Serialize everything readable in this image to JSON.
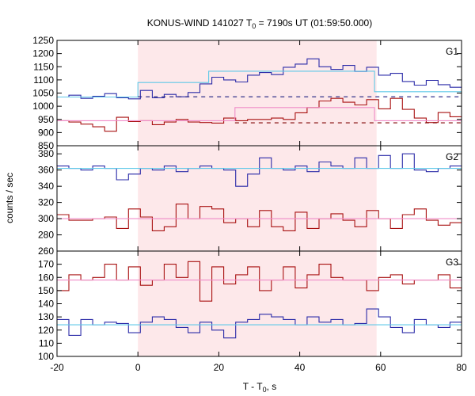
{
  "chart_data": {
    "type": "line",
    "title_main": "KONUS-WIND 141027 T",
    "title_sub": "0",
    "title_rest": " = 7190s UT (01:59:50.000)",
    "xlabel_main": "T - T",
    "xlabel_sub": "0",
    "xlabel_rest": ", s",
    "ylabel": "counts / sec",
    "xlim": [
      -20,
      80
    ],
    "x_ticks": [
      -20,
      0,
      20,
      40,
      60,
      80
    ],
    "x_tick_labels": [
      "-20",
      "0",
      "20",
      "40",
      "60",
      "80"
    ],
    "shaded_interval": [
      0,
      59
    ],
    "shade_color": "#fde8ea",
    "colors": {
      "blue": "#2b2ba8",
      "red": "#a81010",
      "cyan": "#5ec8e8",
      "pink": "#f08cc8",
      "dark_blue": "#1c1c80",
      "dark_red": "#800000"
    },
    "panels": [
      {
        "label": "G1",
        "ylim": [
          850,
          1250
        ],
        "y_ticks": [
          850,
          900,
          950,
          1000,
          1050,
          1100,
          1150,
          1200,
          1250
        ],
        "y_tick_labels": [
          "850",
          "900",
          "950",
          "1000",
          "1050",
          "1100",
          "1150",
          "1200",
          "1250"
        ],
        "bin_width": 2.944,
        "x_start": -20,
        "series": [
          {
            "color": "blue",
            "values": [
              1035,
              1042,
              1030,
              1038,
              1048,
              1032,
              1028,
              1060,
              1032,
              1045,
              1036,
              1052,
              1085,
              1110,
              1100,
              1092,
              1118,
              1128,
              1120,
              1148,
              1160,
              1180,
              1150,
              1140,
              1155,
              1132,
              1148,
              1118,
              1125,
              1094,
              1080,
              1098,
              1082,
              1072,
              1060,
              1070
            ]
          },
          {
            "color": "red",
            "values": [
              945,
              940,
              932,
              922,
              905,
              958,
              942,
              945,
              930,
              940,
              950,
              940,
              938,
              936,
              955,
              945,
              950,
              950,
              955,
              950,
              975,
              995,
              1020,
              1030,
              1015,
              1005,
              1025,
              990,
              1030,
              988,
              955,
              938,
              976,
              960,
              942,
              940,
              935,
              925
            ]
          }
        ],
        "levels": [
          {
            "color": "cyan",
            "segments": [
              [
                -20,
                0,
                1035
              ],
              [
                0,
                17.5,
                1090
              ],
              [
                17.5,
                58.5,
                1133
              ],
              [
                58.5,
                80,
                1055
              ]
            ]
          },
          {
            "color": "pink",
            "segments": [
              [
                -20,
                24,
                945
              ],
              [
                24,
                58.5,
                995
              ],
              [
                58.5,
                80,
                945
              ]
            ]
          }
        ],
        "dashed": [
          {
            "color": "dark_blue",
            "segments": [
              [
                0,
                80,
                1036
              ]
            ]
          },
          {
            "color": "dark_red",
            "segments": [
              [
                24,
                80,
                937
              ]
            ]
          }
        ]
      },
      {
        "label": "G2",
        "ylim": [
          260,
          390
        ],
        "y_ticks": [
          260,
          280,
          300,
          320,
          340,
          360,
          380
        ],
        "y_tick_labels": [
          "260",
          "280",
          "300",
          "320",
          "340",
          "360",
          "380"
        ],
        "bin_width": 2.944,
        "x_start": -20,
        "series": [
          {
            "color": "blue",
            "values": [
              365,
              362,
              360,
              365,
              362,
              348,
              355,
              362,
              360,
              365,
              358,
              362,
              365,
              362,
              360,
              340,
              355,
              375,
              362,
              360,
              365,
              358,
              370,
              365,
              362,
              375,
              362,
              378,
              362,
              380,
              360,
              358,
              362,
              365,
              352,
              362,
              345,
              372
            ]
          },
          {
            "color": "red",
            "values": [
              305,
              298,
              298,
              300,
              302,
              288,
              312,
              302,
              285,
              290,
              318,
              300,
              315,
              312,
              295,
              300,
              290,
              310,
              290,
              285,
              308,
              288,
              300,
              306,
              298,
              290,
              310,
              300,
              288,
              305,
              312,
              298,
              292,
              295,
              288,
              300,
              302,
              310
            ]
          }
        ],
        "levels": [
          {
            "color": "cyan",
            "segments": [
              [
                -20,
                80,
                362
              ]
            ]
          },
          {
            "color": "pink",
            "segments": [
              [
                -20,
                80,
                300
              ]
            ]
          }
        ],
        "dashed": []
      },
      {
        "label": "G3",
        "ylim": [
          100,
          180
        ],
        "y_ticks": [
          100,
          110,
          120,
          130,
          140,
          150,
          160,
          170
        ],
        "y_tick_labels": [
          "100",
          "110",
          "120",
          "130",
          "140",
          "150",
          "160",
          "170"
        ],
        "bin_width": 2.944,
        "x_start": -20,
        "series": [
          {
            "color": "red",
            "values": [
              150,
              162,
              158,
              160,
              170,
              158,
              168,
              154,
              158,
              170,
              160,
              172,
              142,
              168,
              155,
              162,
              168,
              150,
              158,
              168,
              152,
              162,
              170,
              160,
              158,
              158,
              150,
              160,
              162,
              155,
              158,
              158,
              162,
              152,
              158,
              156,
              154,
              164
            ]
          },
          {
            "color": "blue",
            "values": [
              128,
              116,
              128,
              124,
              126,
              125,
              118,
              126,
              130,
              128,
              122,
              118,
              126,
              120,
              114,
              126,
              128,
              132,
              130,
              128,
              124,
              130,
              126,
              128,
              124,
              125,
              136,
              130,
              122,
              118,
              128,
              124,
              122,
              126,
              124,
              128,
              130,
              126
            ]
          }
        ],
        "levels": [
          {
            "color": "pink",
            "segments": [
              [
                -20,
                80,
                158
              ]
            ]
          },
          {
            "color": "cyan",
            "segments": [
              [
                -20,
                80,
                124
              ]
            ]
          }
        ],
        "dashed": []
      }
    ]
  }
}
